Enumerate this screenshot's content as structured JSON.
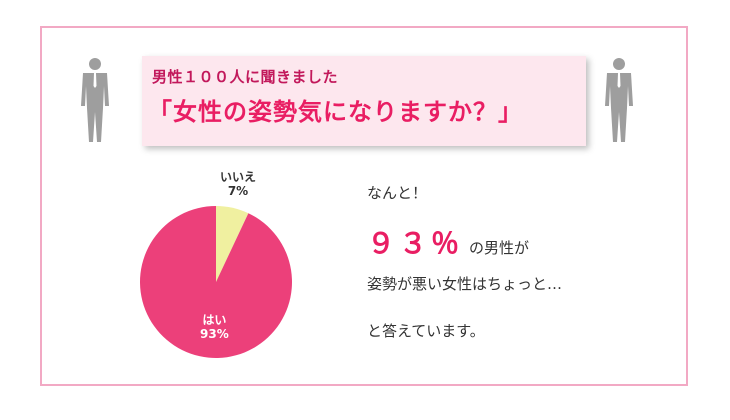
{
  "banner": {
    "subtitle": "男性１００人に聞きました",
    "title": "「女性の姿勢気になりますか？」"
  },
  "chart_data": {
    "type": "pie",
    "slices": [
      {
        "name": "はい",
        "label": "93%",
        "value": 93,
        "color": "#ec407a"
      },
      {
        "name": "いいえ",
        "label": "7%",
        "value": 7,
        "color": "#f0f0a0"
      }
    ]
  },
  "message": {
    "line1": "なんと！",
    "percent": "９３％",
    "line2_suffix": "の男性が",
    "line3": "姿勢が悪い女性はちょっと…",
    "line4": "と答えています。"
  },
  "colors": {
    "frame_border": "#f2a9c4",
    "banner_bg": "#fde7ee",
    "accent": "#e91e63",
    "figure": "#9e9e9e"
  },
  "icons": [
    "businessman-icon-left",
    "businessman-icon-right"
  ]
}
